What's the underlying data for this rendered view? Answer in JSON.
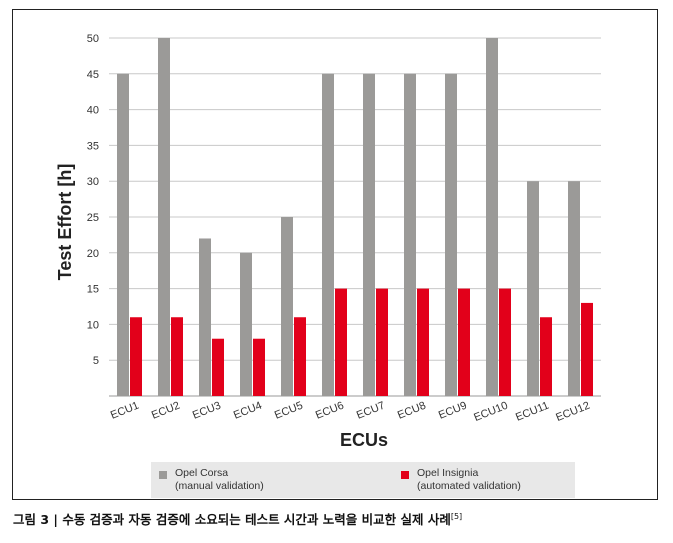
{
  "caption": {
    "text": "그림 3 | 수동 검증과 자동 검증에 소요되는 테스트 시간과 노력을 비교한 실제 사례",
    "ref": "[5]"
  },
  "colors": {
    "manual": "#9b9a98",
    "automated": "#e2001a",
    "grid": "#c8c8c8",
    "text": "#333333"
  },
  "chart_data": {
    "type": "bar",
    "categories": [
      "ECU1",
      "ECU2",
      "ECU3",
      "ECU4",
      "ECU5",
      "ECU6",
      "ECU7",
      "ECU8",
      "ECU9",
      "ECU10",
      "ECU11",
      "ECU12"
    ],
    "series": [
      {
        "name": "Opel Corsa\n(manual validation)",
        "values": [
          45,
          50,
          22,
          20,
          25,
          45,
          45,
          45,
          45,
          50,
          30,
          30
        ]
      },
      {
        "name": "Opel Insignia\n(automated validation)",
        "values": [
          11,
          11,
          8,
          8,
          11,
          15,
          15,
          15,
          15,
          15,
          11,
          13
        ]
      }
    ],
    "yticks": [
      5,
      10,
      15,
      20,
      25,
      30,
      35,
      40,
      45,
      50
    ],
    "xlabel": "ECUs",
    "ylabel": "Test Effort [h]",
    "ylim": [
      0,
      50
    ],
    "grid": true,
    "legend": "bottom"
  }
}
